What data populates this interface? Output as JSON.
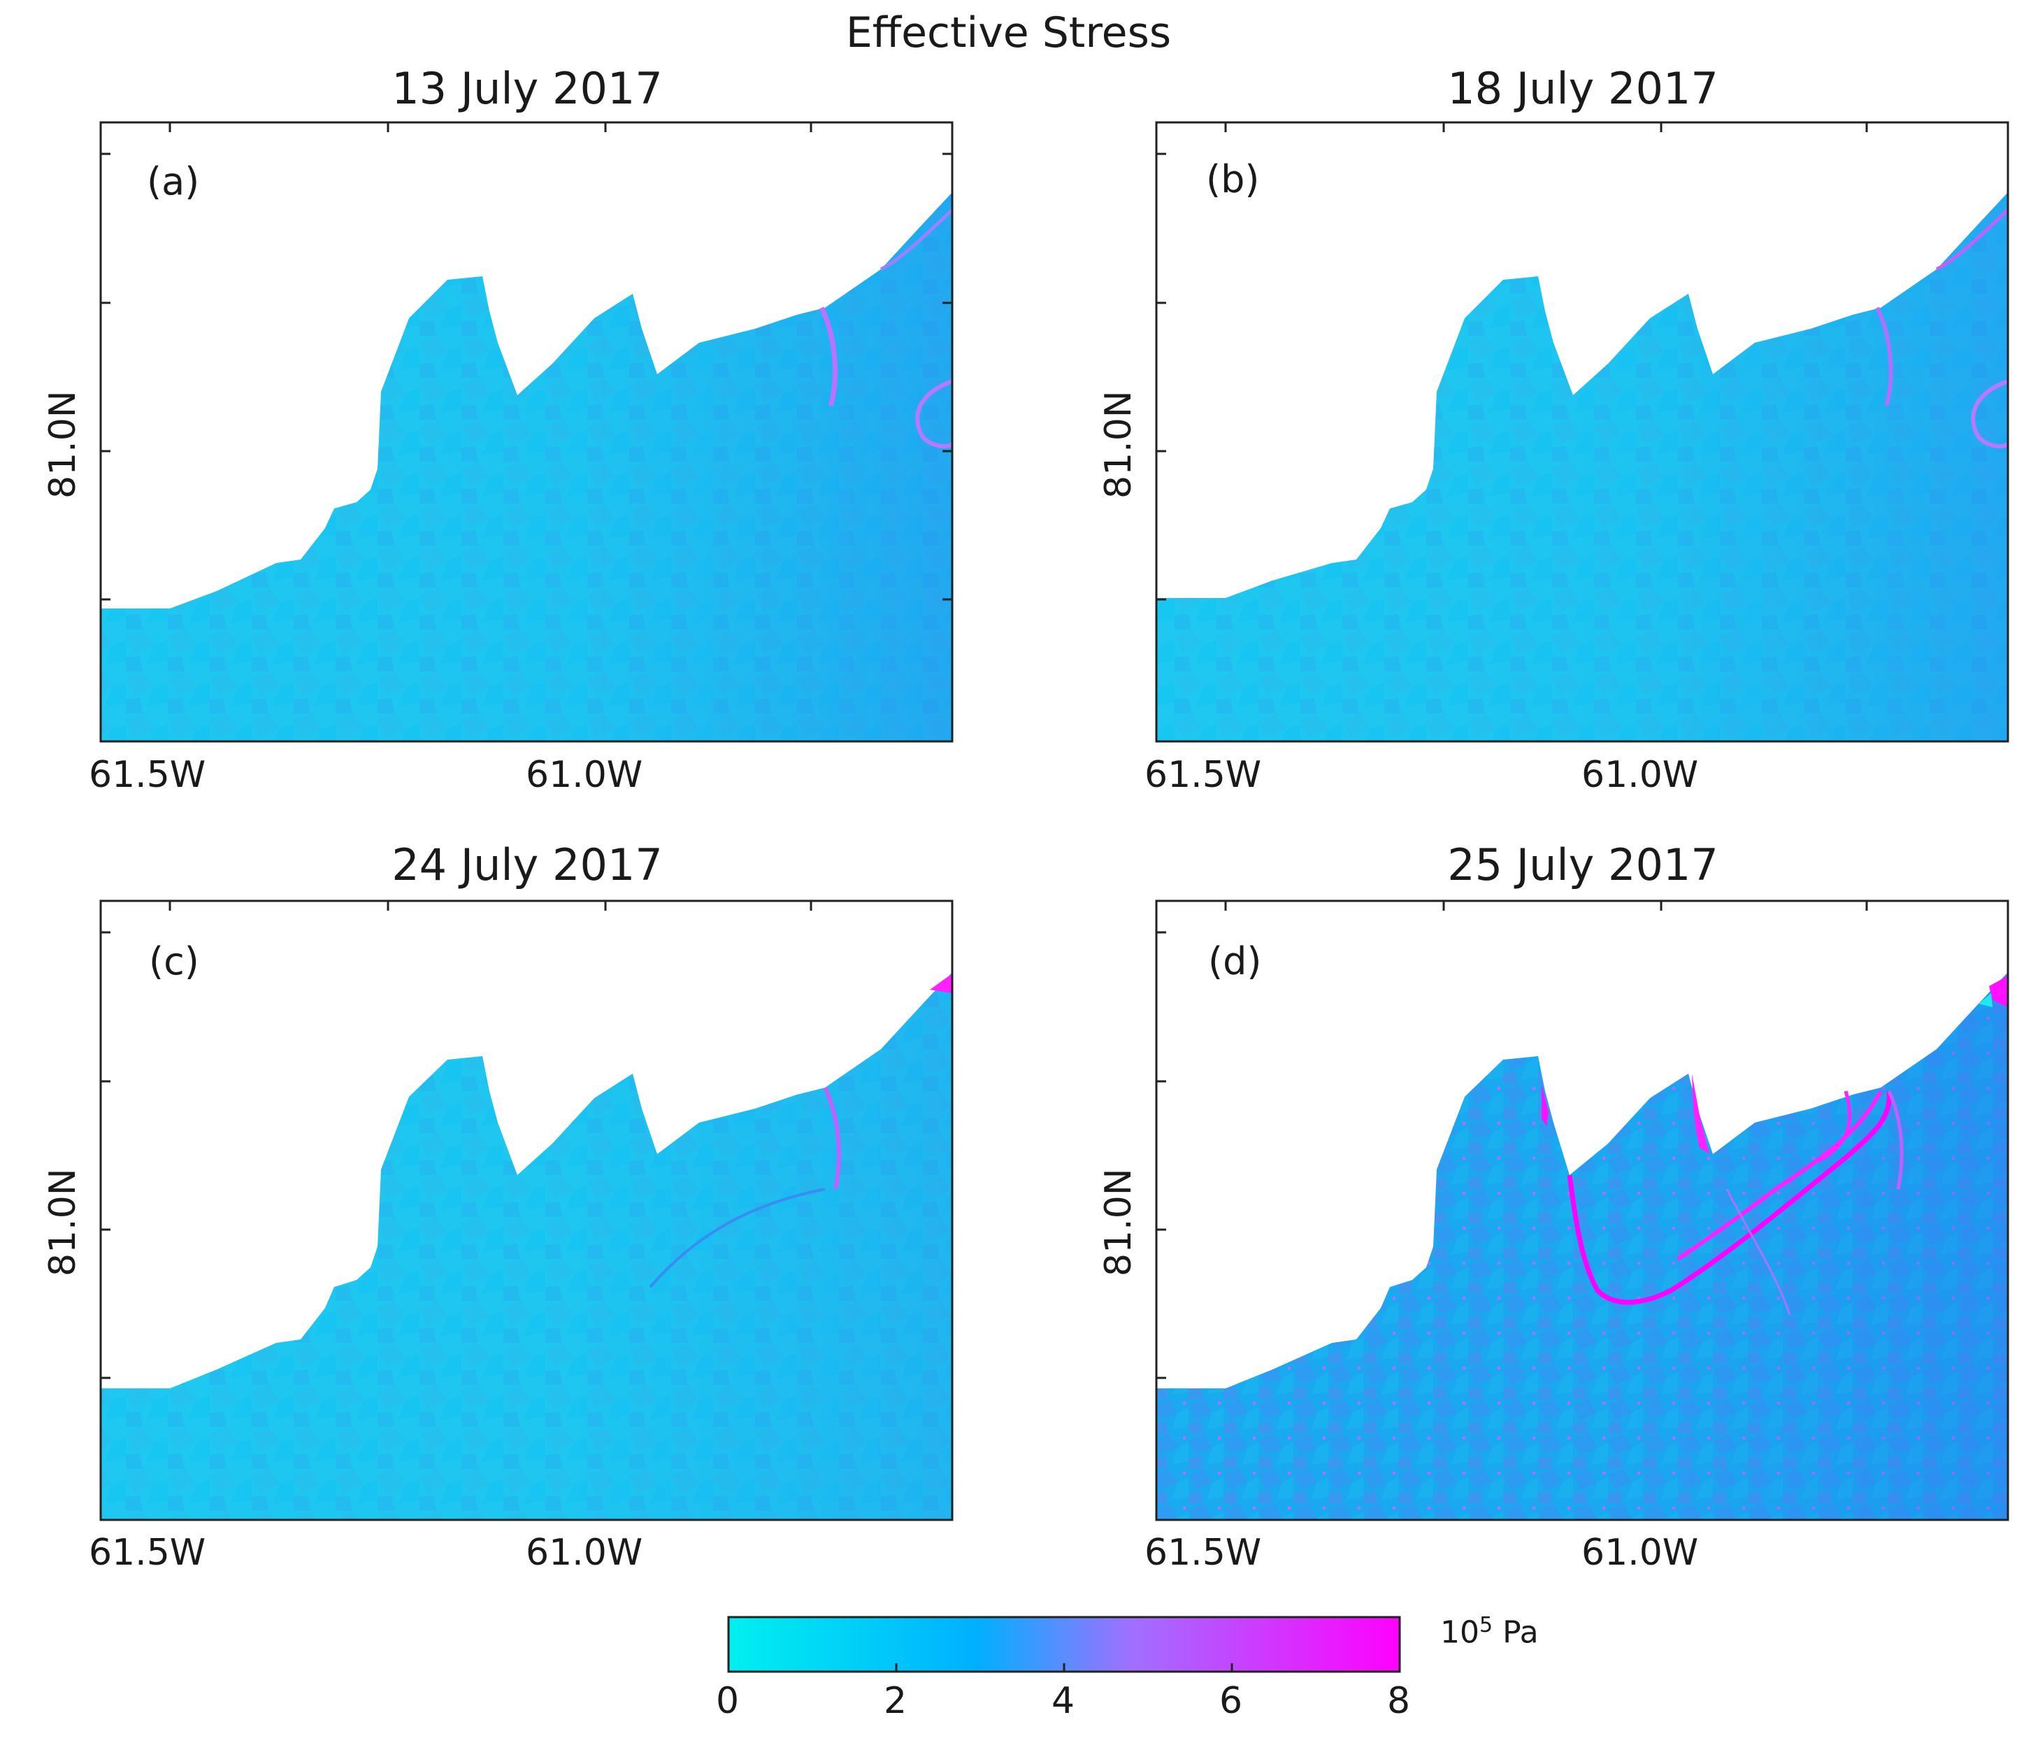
{
  "chart_data": {
    "type": "heatmap",
    "suptitle": "Effective Stress",
    "panels": [
      {
        "label": "(a)",
        "title": "13 July 2017",
        "xticks": [
          "61.5W",
          "61.0W"
        ],
        "yticks": [
          "81.0N"
        ]
      },
      {
        "label": "(b)",
        "title": "18 July 2017",
        "xticks": [
          "61.5W",
          "61.0W"
        ],
        "yticks": [
          "81.0N"
        ]
      },
      {
        "label": "(c)",
        "title": "24 July 2017",
        "xticks": [
          "61.5W",
          "61.0W"
        ],
        "yticks": [
          "81.0N"
        ]
      },
      {
        "label": "(d)",
        "title": "25 July 2017",
        "xticks": [
          "61.5W",
          "61.0W"
        ],
        "yticks": [
          "81.0N"
        ]
      }
    ],
    "colorbar": {
      "unit_base": "10",
      "unit_exponent": "5",
      "unit_suffix": "Pa",
      "range": [
        0,
        8
      ],
      "ticks": [
        "0",
        "2",
        "4",
        "6",
        "8"
      ],
      "colors": [
        "#00f0f0",
        "#00b4ff",
        "#a070ff",
        "#ff00ff"
      ]
    }
  }
}
